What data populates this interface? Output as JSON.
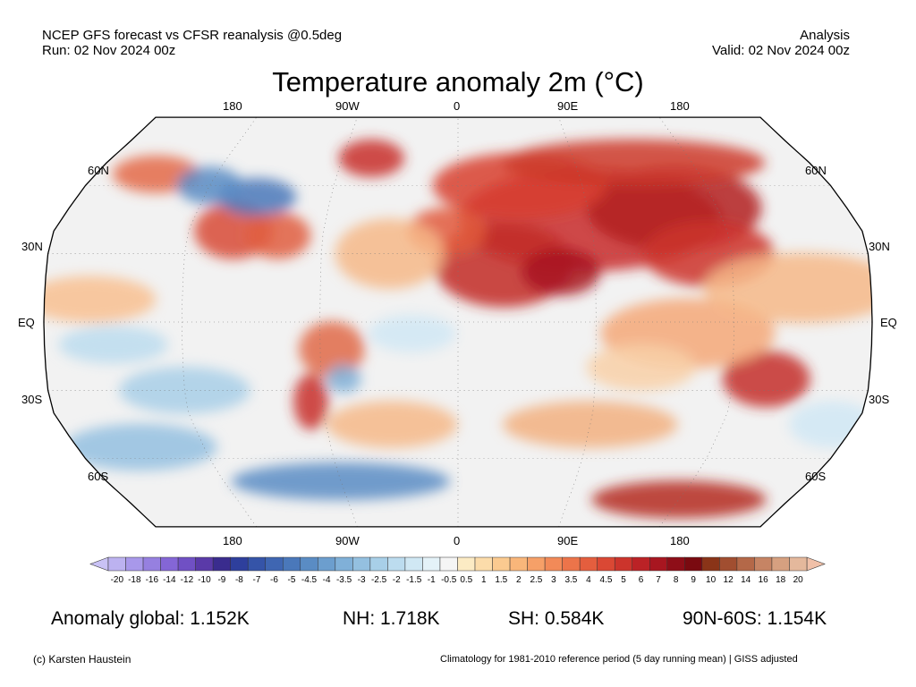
{
  "header": {
    "line1_left": "NCEP GFS forecast vs CFSR reanalysis @0.5deg",
    "line2_left": "Run: 02 Nov 2024 00z",
    "line1_right": "Analysis",
    "line2_right": "Valid: 02 Nov 2024 00z"
  },
  "title": "Temperature anomaly 2m (°C)",
  "map": {
    "projection": "Robinson",
    "longitude_labels": [
      "180",
      "90W",
      "0",
      "90E",
      "180"
    ],
    "latitude_labels": [
      "60N",
      "30N",
      "EQ",
      "30S",
      "60S"
    ],
    "ocean_color": "#f2f2f2"
  },
  "colorbar": {
    "tick_labels": [
      "-20",
      "-18",
      "-16",
      "-14",
      "-12",
      "-10",
      "-9",
      "-8",
      "-7",
      "-6",
      "-5",
      "-4.5",
      "-4",
      "-3.5",
      "-3",
      "-2.5",
      "-2",
      "-1.5",
      "-1",
      "-0.5",
      "0.5",
      "1",
      "1.5",
      "2",
      "2.5",
      "3",
      "3.5",
      "4",
      "4.5",
      "5",
      "6",
      "7",
      "8",
      "9",
      "10",
      "12",
      "14",
      "16",
      "18",
      "20"
    ],
    "low_extend_color": "#c9c2f5",
    "high_extend_color": "#f0c0a8",
    "colors": [
      "#bcb2f0",
      "#a898ea",
      "#9680e0",
      "#8466d6",
      "#7050c4",
      "#5a3aa8",
      "#3a2c8e",
      "#2e3f9c",
      "#3554a8",
      "#3f66b2",
      "#4a78ba",
      "#5a8cc4",
      "#6c9ece",
      "#80b0d8",
      "#94c0e0",
      "#a8cfe8",
      "#bcdcef",
      "#d0e8f4",
      "#e4f2f8",
      "#f5f5f5",
      "#fcebc4",
      "#fcdcaa",
      "#fbca90",
      "#f9b67a",
      "#f6a068",
      "#f28a58",
      "#ec744a",
      "#e45e3e",
      "#da4834",
      "#cc342c",
      "#bb2226",
      "#a81620",
      "#8e0e18",
      "#7a0a10",
      "#8a3418",
      "#a14e30",
      "#b46848",
      "#c68464",
      "#d6a080",
      "#e4b89c"
    ]
  },
  "stats": {
    "global": "Anomaly global: 1.152K",
    "nh": "NH: 1.718K",
    "sh": "SH: 0.584K",
    "arctic": "90N-60S: 1.154K"
  },
  "footer": {
    "credit": "(c) Karsten Haustein",
    "note": "Climatology for 1981-2010 reference period (5 day running mean) | GISS adjusted"
  }
}
